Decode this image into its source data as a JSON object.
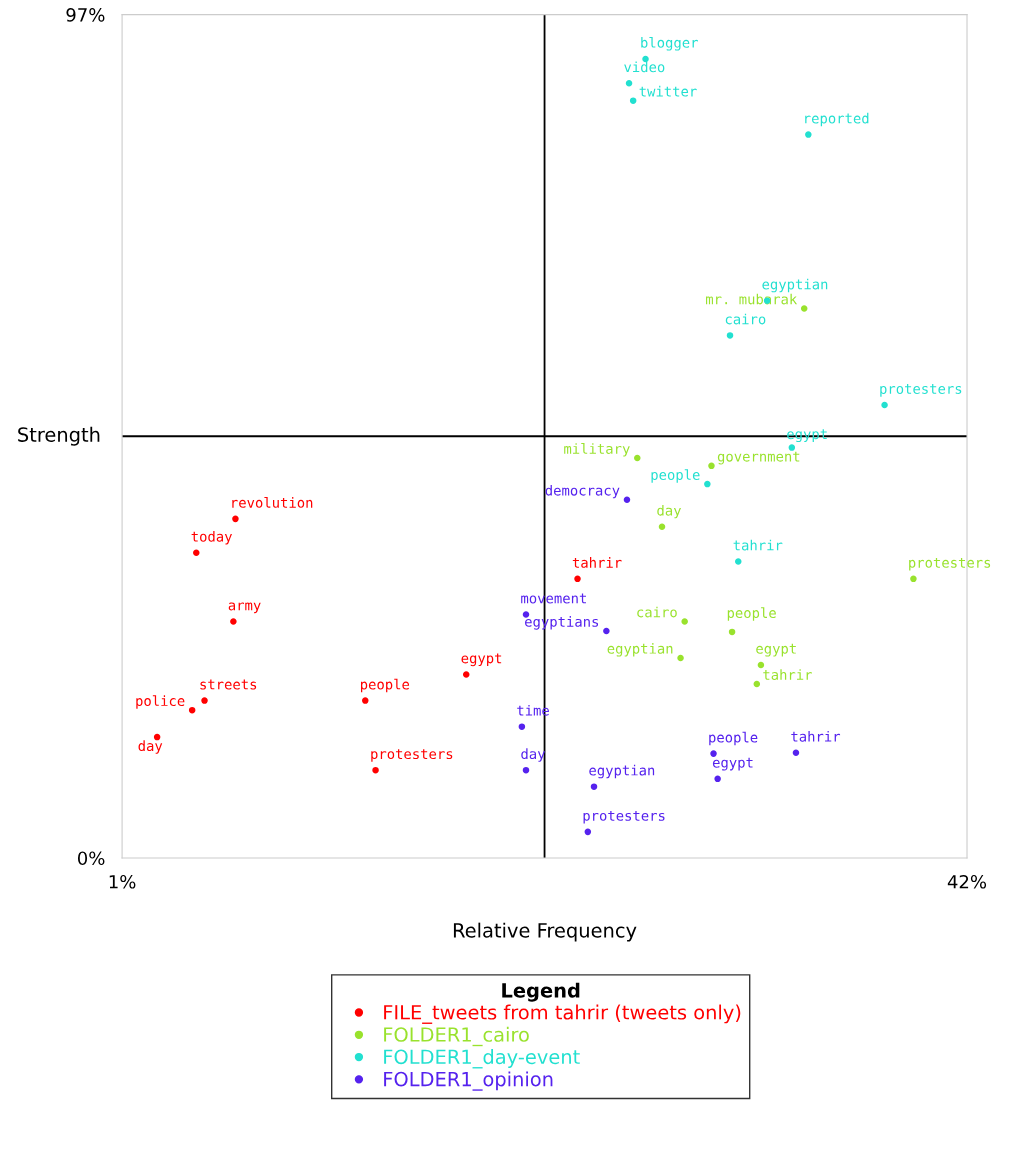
{
  "chart_data": {
    "type": "scatter",
    "xlabel": "Relative Frequency",
    "ylabel": "Strength",
    "legend_title": "Legend",
    "legend": "bottom",
    "marker": "circle",
    "grid": false,
    "xlim": [
      1,
      42
    ],
    "ylim": [
      0,
      97
    ],
    "xticks": [
      {
        "value": 1,
        "label": "1%"
      },
      {
        "value": 42,
        "label": "42%"
      }
    ],
    "yticks": [
      {
        "value": 0,
        "label": "0%"
      },
      {
        "value": 97,
        "label": "97%"
      }
    ],
    "ref_lines": [
      {
        "axis": "x",
        "value": 21.5,
        "color": "#000000"
      },
      {
        "axis": "y",
        "value": 48.5,
        "color": "#000000"
      }
    ],
    "series": [
      {
        "name": "FILE_tweets from tahrir (tweets only)",
        "color": "#ff0000",
        "x": [
          6.5,
          4.6,
          6.4,
          5.0,
          4.4,
          2.7,
          12.8,
          13.3,
          17.7,
          23.1
        ],
        "values": [
          39.0,
          35.1,
          27.2,
          18.1,
          17.0,
          13.9,
          18.1,
          10.1,
          21.1,
          32.1
        ],
        "value_labels": [
          "revolution",
          "today",
          "army",
          "streets",
          "police",
          "day",
          "people",
          "protesters",
          "egypt",
          "tahrir"
        ]
      },
      {
        "name": "FOLDER1_cairo",
        "color": "#99e22d",
        "x": [
          34.1,
          26.0,
          29.6,
          27.2,
          39.4,
          28.3,
          30.6,
          28.1,
          32.0,
          31.8
        ],
        "values": [
          63.2,
          46.0,
          45.1,
          38.1,
          32.1,
          27.2,
          26.0,
          23.0,
          22.2,
          20.0
        ],
        "value_labels": [
          "mr. mubarak",
          "military",
          "government",
          "day",
          "protesters",
          "cairo",
          "people",
          "egyptian",
          "egypt",
          "tahrir"
        ]
      },
      {
        "name": "FOLDER1_day-event",
        "color": "#22e0d0",
        "x": [
          26.4,
          25.6,
          25.8,
          34.3,
          32.3,
          30.5,
          38.0,
          33.5,
          29.4,
          30.9
        ],
        "values": [
          91.9,
          89.1,
          87.1,
          83.2,
          64.1,
          60.1,
          52.1,
          47.2,
          43.0,
          34.1
        ],
        "value_labels": [
          "blogger",
          "video",
          "twitter",
          "reported",
          "egyptian",
          "cairo",
          "protesters",
          "egypt",
          "people",
          "tahrir"
        ]
      },
      {
        "name": "FOLDER1_opinion",
        "color": "#5522ee",
        "x": [
          25.5,
          20.6,
          24.5,
          20.4,
          20.6,
          23.9,
          23.6,
          29.7,
          33.7,
          29.9
        ],
        "values": [
          41.2,
          28.0,
          26.1,
          15.1,
          10.1,
          8.2,
          3.0,
          12.0,
          12.1,
          9.1
        ],
        "value_labels": [
          "democracy",
          "movement",
          "egyptians",
          "time",
          "day",
          "egyptian",
          "protesters",
          "people",
          "tahrir",
          "egypt"
        ]
      }
    ]
  }
}
